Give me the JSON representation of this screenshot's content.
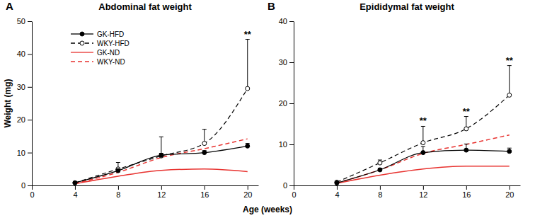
{
  "chart_data": [
    {
      "type": "line",
      "label": "A",
      "title": "Abdominal fat weight",
      "y_label": "Weight (mg)",
      "x_label": "Age (weeks)",
      "x": [
        4,
        8,
        12,
        16,
        20
      ],
      "xlim": [
        0,
        21
      ],
      "xticks": [
        0,
        4,
        8,
        12,
        16,
        20
      ],
      "ylim": [
        0,
        50
      ],
      "yticks": [
        0,
        10,
        20,
        30,
        40,
        50
      ],
      "legend": "upper left",
      "series": [
        {
          "name": "GK-HFD",
          "color": "#000000",
          "line_style": "solid",
          "marker": "circle",
          "values": [
            0.8,
            4.5,
            9.2,
            10,
            12
          ],
          "errors": [
            0.3,
            0.5,
            0.6,
            0.6,
            0.8
          ]
        },
        {
          "name": "WKY-HFD",
          "color": "#000000",
          "line_style": "dashed",
          "marker": "circle-open",
          "values": [
            0.8,
            5,
            9,
            12.8,
            29.5
          ],
          "errors": [
            0.3,
            2,
            5.8,
            4.3,
            15
          ]
        },
        {
          "name": "GK-ND",
          "color": "#e8322f",
          "line_style": "solid",
          "marker": "none",
          "values": [
            0.5,
            2.8,
            4.6,
            5,
            4.2
          ]
        },
        {
          "name": "WKY-ND",
          "color": "#e8322f",
          "line_style": "dashed",
          "marker": "none",
          "values": [
            0.6,
            4,
            8.5,
            11.2,
            14.2
          ]
        }
      ],
      "annotations": [
        {
          "text": "**",
          "x": 20
        }
      ]
    },
    {
      "type": "line",
      "label": "B",
      "title": "Epididymal fat weight",
      "x": [
        4,
        8,
        12,
        16,
        20
      ],
      "xlim": [
        0,
        21
      ],
      "xticks": [
        0,
        4,
        8,
        12,
        16,
        20
      ],
      "ylim": [
        0,
        40
      ],
      "yticks": [
        0,
        10,
        20,
        30,
        40
      ],
      "series": [
        {
          "name": "GK-HFD",
          "color": "#000000",
          "line_style": "solid",
          "marker": "circle",
          "values": [
            0.6,
            3.8,
            8,
            8.6,
            8.3
          ],
          "errors": [
            0.2,
            0.4,
            1.5,
            1.5,
            0.8
          ]
        },
        {
          "name": "WKY-HFD",
          "color": "#000000",
          "line_style": "dashed",
          "marker": "circle-open",
          "values": [
            0.8,
            5.5,
            10.4,
            13.8,
            22
          ],
          "errors": [
            0.3,
            0.7,
            4,
            3,
            7.2
          ]
        },
        {
          "name": "GK-ND",
          "color": "#e8322f",
          "line_style": "solid",
          "marker": "none",
          "values": [
            0.5,
            2.5,
            4,
            4.7,
            4.7
          ]
        },
        {
          "name": "WKY-ND",
          "color": "#e8322f",
          "line_style": "dashed",
          "marker": "none",
          "values": [
            0.6,
            3.8,
            7.8,
            10,
            12.3
          ]
        }
      ],
      "annotations": [
        {
          "text": "**",
          "x": 12
        },
        {
          "text": "**",
          "x": 16
        },
        {
          "text": "**",
          "x": 20
        }
      ]
    }
  ]
}
